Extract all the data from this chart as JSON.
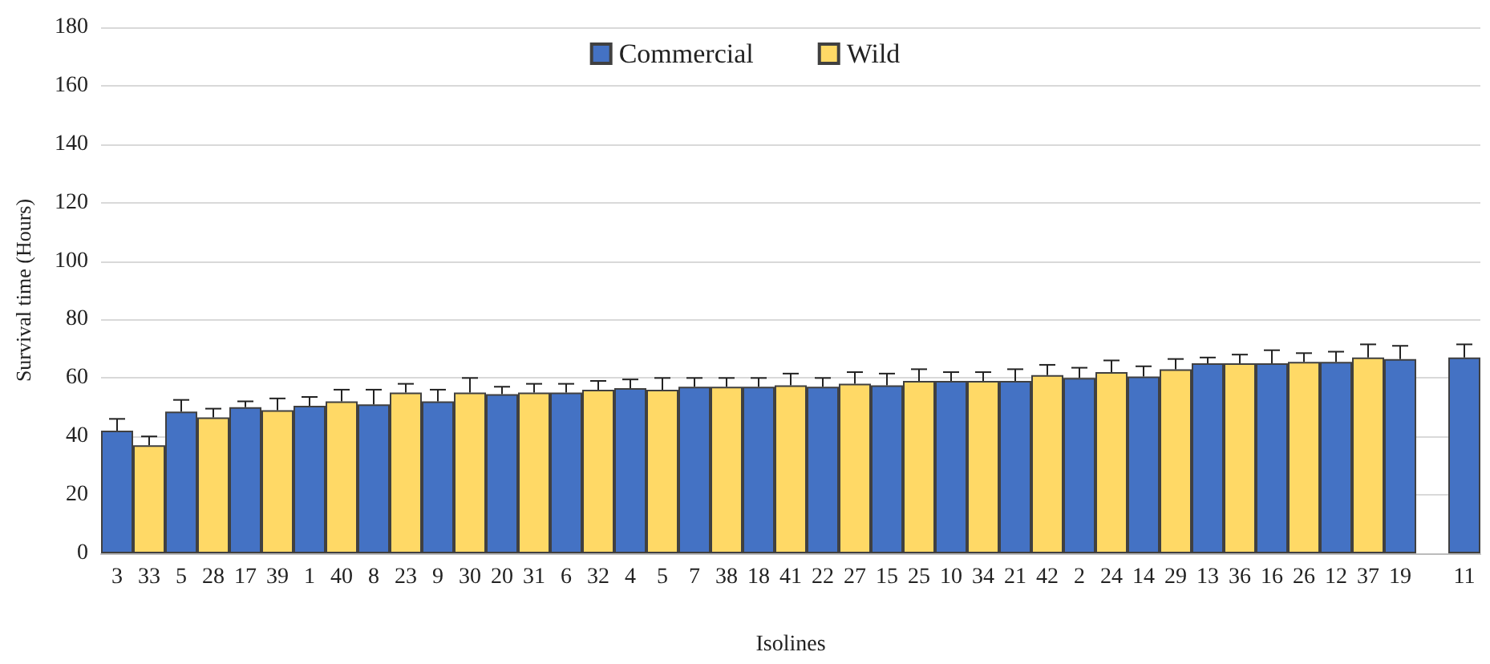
{
  "chart_data": {
    "type": "bar",
    "xlabel": "Isolines",
    "ylabel": "Survival time (Hours)",
    "categories": [
      "3",
      "33",
      "5",
      "28",
      "17",
      "39",
      "1",
      "40",
      "8",
      "23",
      "9",
      "30",
      "20",
      "31",
      "6",
      "32",
      "4",
      "5",
      "7",
      "38",
      "18",
      "41",
      "22",
      "27",
      "15",
      "25",
      "10",
      "34",
      "21",
      "42",
      "2",
      "24",
      "14",
      "29",
      "13",
      "36",
      "16",
      "26",
      "12",
      "37",
      "19",
      null,
      "11"
    ],
    "series": [
      {
        "name": "Commercial",
        "color": "#4472c4",
        "values": [
          42,
          null,
          48.5,
          null,
          50,
          null,
          50.5,
          null,
          51,
          null,
          52,
          null,
          54.5,
          null,
          55,
          null,
          56.5,
          null,
          57,
          null,
          57,
          null,
          57,
          null,
          57.5,
          null,
          59,
          null,
          59,
          null,
          60,
          null,
          60.5,
          null,
          65,
          null,
          65,
          null,
          65.5,
          null,
          66.5,
          null,
          67
        ],
        "errors": [
          [
            42,
            46
          ],
          null,
          [
            48.5,
            52.5
          ],
          null,
          [
            50,
            52
          ],
          null,
          [
            50.5,
            53.5
          ],
          null,
          [
            51,
            56
          ],
          null,
          [
            52,
            56
          ],
          null,
          [
            54.5,
            57
          ],
          null,
          [
            55,
            58
          ],
          null,
          [
            56.5,
            59.5
          ],
          null,
          [
            57,
            60
          ],
          null,
          [
            57,
            60
          ],
          null,
          [
            57,
            60
          ],
          null,
          [
            57.5,
            61.5
          ],
          null,
          [
            59,
            62
          ],
          null,
          [
            59,
            63
          ],
          null,
          [
            60,
            63.5
          ],
          null,
          [
            60.5,
            64
          ],
          null,
          [
            65,
            67
          ],
          null,
          [
            65,
            69.5
          ],
          null,
          [
            65.5,
            69
          ],
          null,
          [
            66.5,
            71
          ],
          null,
          [
            67,
            71.5
          ]
        ]
      },
      {
        "name": "Wild",
        "color": "#ffd966",
        "values": [
          null,
          37,
          null,
          46.5,
          null,
          49,
          null,
          52,
          null,
          55,
          null,
          55,
          null,
          55,
          null,
          56,
          null,
          56,
          null,
          57,
          null,
          57.5,
          null,
          58,
          null,
          59,
          null,
          59,
          null,
          61,
          null,
          62,
          null,
          63,
          null,
          65,
          null,
          65.5,
          null,
          67,
          null,
          null,
          null
        ],
        "errors": [
          null,
          [
            37,
            40
          ],
          null,
          [
            46.5,
            49.5
          ],
          null,
          [
            49,
            53
          ],
          null,
          [
            52,
            56
          ],
          null,
          [
            55,
            58
          ],
          null,
          [
            55,
            60
          ],
          null,
          [
            55,
            58
          ],
          null,
          [
            56,
            59
          ],
          null,
          [
            56,
            60
          ],
          null,
          [
            57,
            60
          ],
          null,
          [
            57.5,
            61.5
          ],
          null,
          [
            58,
            62
          ],
          null,
          [
            59,
            63
          ],
          null,
          [
            59,
            62
          ],
          null,
          [
            61,
            64.5
          ],
          null,
          [
            62,
            66
          ],
          null,
          [
            63,
            66.5
          ],
          null,
          [
            65,
            68
          ],
          null,
          [
            65.5,
            68.5
          ],
          null,
          [
            67,
            71.5
          ],
          null,
          null,
          null
        ]
      }
    ],
    "ylim": [
      0,
      180
    ],
    "yticks": [
      0,
      20,
      40,
      60,
      80,
      100,
      120,
      140,
      160,
      180
    ],
    "grid": "y",
    "legend": "top"
  }
}
